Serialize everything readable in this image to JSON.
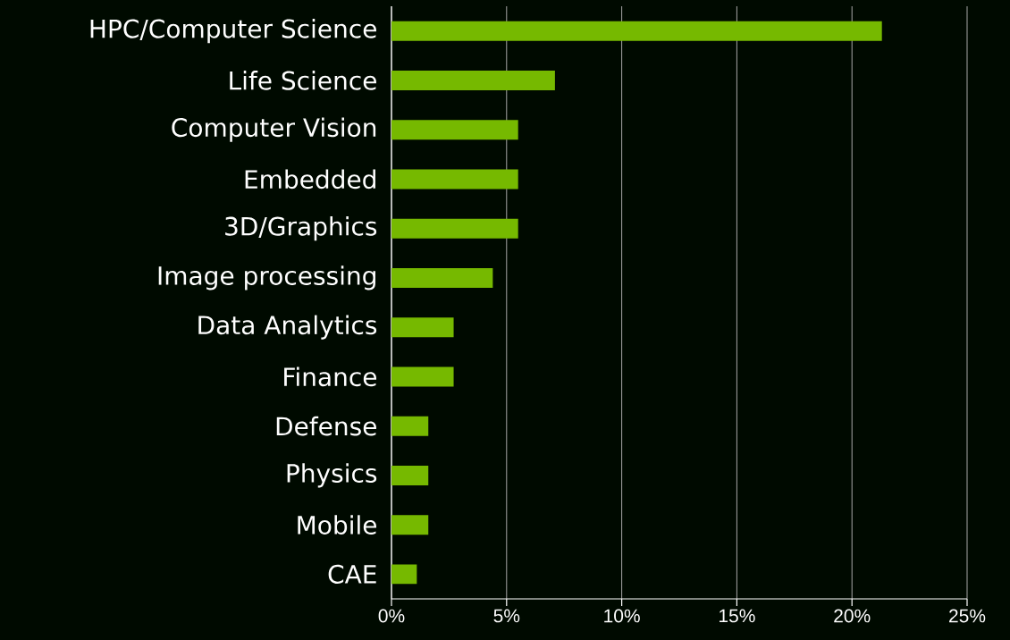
{
  "chart_data": {
    "type": "bar",
    "orientation": "horizontal",
    "categories": [
      "HPC/Computer Science",
      "Life Science",
      "Computer Vision",
      "Embedded",
      "3D/Graphics",
      "Image processing",
      "Data Analytics",
      "Finance",
      "Defense",
      "Physics",
      "Mobile",
      "CAE"
    ],
    "values": [
      21.3,
      7.1,
      5.5,
      5.5,
      5.5,
      4.4,
      2.7,
      2.7,
      1.6,
      1.6,
      1.6,
      1.1
    ],
    "color": "#76b900",
    "xlim": [
      0,
      25
    ],
    "xticks": [
      {
        "value": 0,
        "label": "0%"
      },
      {
        "value": 5,
        "label": "5%"
      },
      {
        "value": 10,
        "label": "10%"
      },
      {
        "value": 15,
        "label": "15%"
      },
      {
        "value": 20,
        "label": "20%"
      },
      {
        "value": 25,
        "label": "25%"
      }
    ],
    "grid": "x"
  }
}
